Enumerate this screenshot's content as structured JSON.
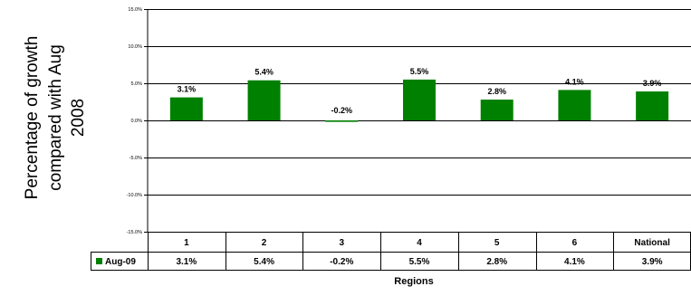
{
  "chart_data": {
    "type": "bar",
    "categories": [
      "1",
      "2",
      "3",
      "4",
      "5",
      "6",
      "National"
    ],
    "series": [
      {
        "name": "Aug-09",
        "values": [
          3.1,
          5.4,
          -0.2,
          5.5,
          2.8,
          4.1,
          3.9
        ],
        "color": "#008000"
      }
    ],
    "data_labels": [
      "3.1%",
      "5.4%",
      "-0.2%",
      "5.5%",
      "2.8%",
      "4.1%",
      "3.9%"
    ],
    "table_values": [
      "3.1%",
      "5.4%",
      "-0.2%",
      "5.5%",
      "2.8%",
      "4.1%",
      "3.9%"
    ],
    "ylabel_lines": [
      "Percentage of growth",
      "compared with Aug",
      "2008"
    ],
    "xlabel": "Regions",
    "ylim": [
      -15,
      15
    ],
    "yticks": [
      15,
      10,
      5,
      0,
      -5,
      -10,
      -15
    ],
    "ytick_labels": [
      "15.0%",
      "10.0%",
      "5.0%",
      "0.0%",
      "-5.0%",
      "-10.0%",
      "-15.0%"
    ],
    "grid": true,
    "legend": "data-table",
    "colors": {
      "bar": "#008000",
      "grid": "#000000",
      "text": "#000000"
    }
  }
}
